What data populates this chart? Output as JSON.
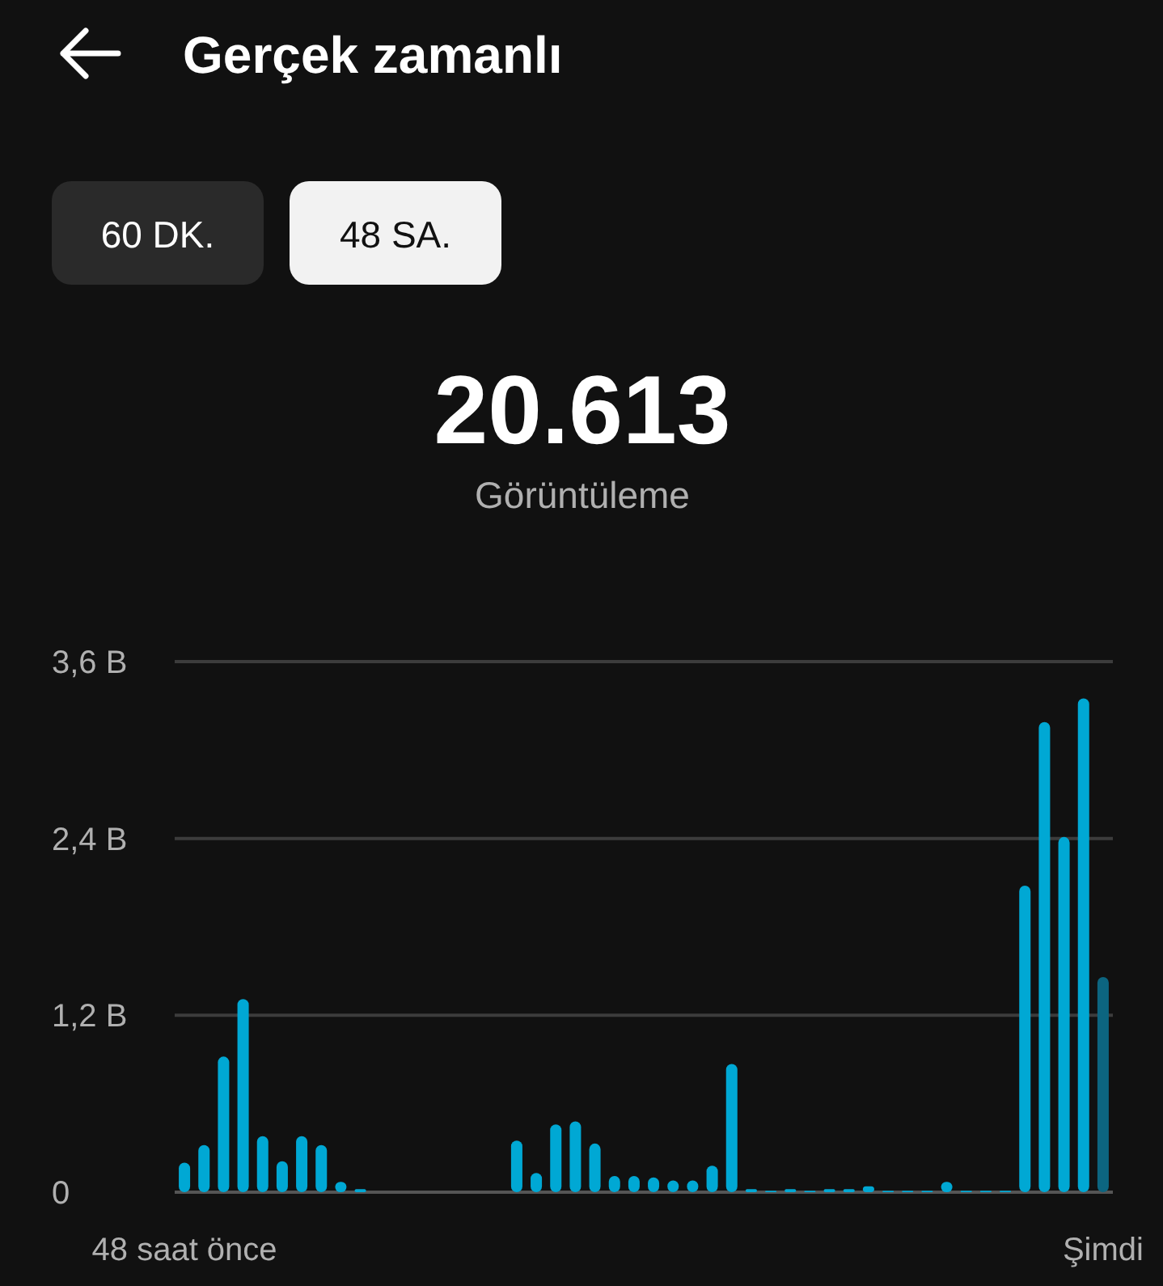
{
  "chart_data": {
    "type": "bar",
    "title": "Gerçek zamanlı",
    "subtitle": "Görüntüleme",
    "annotations": [
      "60 DK.",
      "48 SA.",
      "20.613"
    ],
    "categories": [
      "48 saat önce",
      null,
      null,
      null,
      null,
      null,
      null,
      null,
      null,
      null,
      null,
      null,
      null,
      null,
      null,
      null,
      null,
      null,
      null,
      null,
      null,
      null,
      null,
      null,
      null,
      null,
      null,
      null,
      null,
      null,
      null,
      null,
      null,
      null,
      null,
      null,
      null,
      null,
      null,
      null,
      null,
      null,
      null,
      null,
      null,
      null,
      null,
      "Şimdi"
    ],
    "values": [
      0.2,
      0.32,
      0.92,
      1.31,
      0.38,
      0.21,
      0.38,
      0.32,
      0.07,
      0.02,
      0,
      0,
      0,
      0,
      0,
      0,
      0,
      0.35,
      0.13,
      0.46,
      0.48,
      0.33,
      0.11,
      0.11,
      0.1,
      0.08,
      0.08,
      0.18,
      0.87,
      0.02,
      0.01,
      0.02,
      0.01,
      0.02,
      0.02,
      0.04,
      0.01,
      0.01,
      0.01,
      0.07,
      0.01,
      0.01,
      0.01,
      2.08,
      3.19,
      2.41,
      3.35,
      1.46
    ],
    "colors": [
      "#00a8d4",
      "#00a8d4",
      "#00a8d4",
      "#00a8d4",
      "#00a8d4",
      "#00a8d4",
      "#00a8d4",
      "#00a8d4",
      "#00a8d4",
      "#00a8d4",
      "#00a8d4",
      "#00a8d4",
      "#00a8d4",
      "#00a8d4",
      "#00a8d4",
      "#00a8d4",
      "#00a8d4",
      "#00a8d4",
      "#00a8d4",
      "#00a8d4",
      "#00a8d4",
      "#00a8d4",
      "#00a8d4",
      "#00a8d4",
      "#00a8d4",
      "#00a8d4",
      "#00a8d4",
      "#00a8d4",
      "#00a8d4",
      "#00a8d4",
      "#00a8d4",
      "#00a8d4",
      "#00a8d4",
      "#00a8d4",
      "#00a8d4",
      "#00a8d4",
      "#00a8d4",
      "#00a8d4",
      "#00a8d4",
      "#00a8d4",
      "#00a8d4",
      "#00a8d4",
      "#00a8d4",
      "#00a8d4",
      "#00a8d4",
      "#00a8d4",
      "#00a8d4",
      "#0c6580"
    ],
    "ylim": [
      0,
      3.6
    ],
    "yticks": [
      0,
      {
        "value": 1.2,
        "label": "1,2 B"
      },
      {
        "value": 2.4,
        "label": "2,4 B"
      },
      {
        "value": 3.6,
        "label": "3,6 B"
      }
    ],
    "grid": "y"
  }
}
